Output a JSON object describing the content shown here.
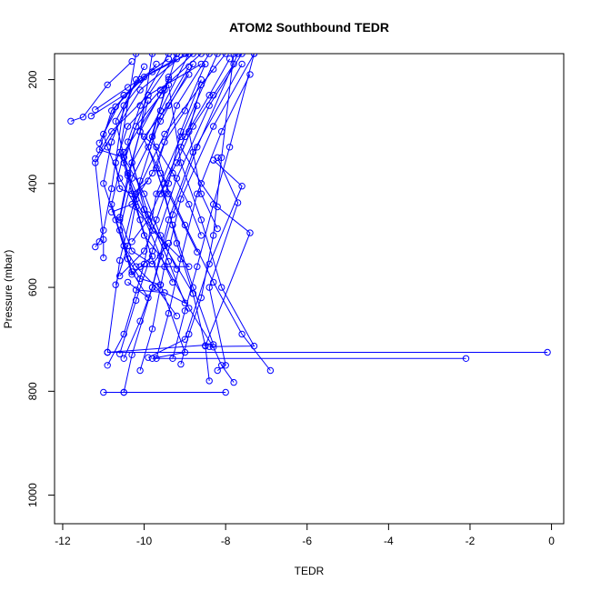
{
  "chart_data": {
    "type": "line",
    "title": "ATOM2 Southbound TEDR",
    "xlabel": "TEDR",
    "ylabel": "Pressure (mbar)",
    "xlim": [
      -12.2,
      0.3
    ],
    "ylim": [
      1055,
      150
    ],
    "y_reversed": true,
    "x_ticks": [
      -12,
      -10,
      -8,
      -6,
      -4,
      -2,
      0
    ],
    "y_ticks": [
      200,
      400,
      600,
      800,
      1000
    ],
    "grid": false,
    "legend": "none",
    "colors": {
      "series": "#0000ff",
      "axis": "#000000",
      "background": "#ffffff"
    },
    "series": [
      {
        "points": [
          [
            -11.8,
            280
          ],
          [
            -11.5,
            272
          ],
          [
            -10.9,
            210
          ],
          [
            -10.3,
            165
          ]
        ]
      },
      {
        "points": [
          [
            -11.3,
            270
          ],
          [
            -10.5,
            230
          ],
          [
            -9.8,
            185
          ],
          [
            -9.2,
            160
          ]
        ]
      },
      {
        "points": [
          [
            -11.2,
            258
          ],
          [
            -10.4,
            215
          ],
          [
            -9.4,
            160
          ]
        ]
      },
      {
        "points": [
          [
            -11.1,
            322
          ],
          [
            -10.7,
            252
          ],
          [
            -10.0,
            195
          ],
          [
            -8.9,
            150
          ]
        ]
      },
      {
        "points": [
          [
            -11.2,
            352
          ],
          [
            -10.8,
            300
          ],
          [
            -9.9,
            230
          ],
          [
            -8.6,
            170
          ]
        ]
      },
      {
        "points": [
          [
            -11.2,
            522
          ],
          [
            -11.1,
            512
          ],
          [
            -11.0,
            490
          ],
          [
            -10.8,
            410
          ],
          [
            -10.5,
            250
          ],
          [
            -9.7,
            170
          ]
        ]
      },
      {
        "points": [
          [
            -11.0,
            543
          ],
          [
            -11.0,
            508
          ],
          [
            -11.2,
            360
          ],
          [
            -10.1,
            220
          ],
          [
            -9.0,
            150
          ]
        ]
      },
      {
        "points": [
          [
            -10.9,
            725
          ],
          [
            -10.9,
            725
          ],
          [
            -10.6,
            548
          ],
          [
            -10.2,
            420
          ],
          [
            -9.5,
            305
          ],
          [
            -8.3,
            180
          ]
        ]
      },
      {
        "points": [
          [
            -10.9,
            750
          ],
          [
            -10.5,
            690
          ],
          [
            -10.0,
            555
          ],
          [
            -9.7,
            420
          ],
          [
            -9.1,
            310
          ],
          [
            -8.2,
            150
          ]
        ]
      },
      {
        "points": [
          [
            -11.0,
            802
          ],
          [
            -10.5,
            802
          ],
          [
            -8.0,
            802
          ]
        ]
      },
      {
        "points": [
          [
            -10.5,
            802
          ],
          [
            -10.3,
            730
          ],
          [
            -9.8,
            600
          ],
          [
            -9.3,
            460
          ],
          [
            -8.7,
            330
          ],
          [
            -7.7,
            150
          ]
        ]
      },
      {
        "points": [
          [
            -10.7,
            595
          ],
          [
            -10.4,
            520
          ],
          [
            -10.1,
            395
          ],
          [
            -9.6,
            270
          ],
          [
            -8.9,
            175
          ]
        ]
      },
      {
        "points": [
          [
            -10.6,
            728
          ],
          [
            -10.2,
            625
          ],
          [
            -9.8,
            530
          ],
          [
            -9.2,
            390
          ],
          [
            -8.4,
            250
          ],
          [
            -7.6,
            150
          ]
        ]
      },
      {
        "points": [
          [
            -10.5,
            737
          ],
          [
            -10.1,
            665
          ],
          [
            -9.8,
            600
          ],
          [
            -9.4,
            470
          ],
          [
            -8.8,
            340
          ],
          [
            -7.6,
            170
          ]
        ]
      },
      {
        "points": [
          [
            -10.1,
            760
          ],
          [
            -9.8,
            680
          ],
          [
            -9.5,
            560
          ],
          [
            -9.1,
            430
          ],
          [
            -8.3,
            290
          ],
          [
            -7.3,
            150
          ]
        ]
      },
      {
        "points": [
          [
            -9.7,
            737
          ],
          [
            -9.4,
            650
          ],
          [
            -9.1,
            545
          ],
          [
            -8.7,
            420
          ],
          [
            -8.1,
            300
          ],
          [
            -7.4,
            190
          ]
        ]
      },
      {
        "points": [
          [
            -9.3,
            737
          ],
          [
            -9.0,
            645
          ],
          [
            -8.7,
            560
          ],
          [
            -8.3,
            440
          ],
          [
            -7.9,
            330
          ],
          [
            -7.3,
            150
          ]
        ]
      },
      {
        "points": [
          [
            -9.1,
            748
          ],
          [
            -8.9,
            690
          ],
          [
            -8.6,
            620
          ],
          [
            -8.3,
            500
          ],
          [
            -8.1,
            350
          ],
          [
            -7.8,
            150
          ]
        ]
      },
      {
        "points": [
          [
            -8.4,
            780
          ],
          [
            -8.5,
            712
          ],
          [
            -8.8,
            612
          ],
          [
            -9.2,
            515
          ],
          [
            -9.5,
            420
          ],
          [
            -9.9,
            330
          ],
          [
            -9.2,
            150
          ]
        ]
      },
      {
        "points": [
          [
            -7.8,
            783
          ],
          [
            -8.1,
            750
          ],
          [
            -8.3,
            715
          ],
          [
            -8.9,
            640
          ],
          [
            -9.6,
            540
          ],
          [
            -10.2,
            430
          ],
          [
            -10.6,
            340
          ],
          [
            -10.2,
            150
          ]
        ]
      },
      {
        "points": [
          [
            -6.9,
            760
          ],
          [
            -7.6,
            690
          ],
          [
            -8.3,
            590
          ],
          [
            -9.0,
            480
          ],
          [
            -9.6,
            380
          ],
          [
            -10.1,
            300
          ],
          [
            -9.8,
            150
          ]
        ]
      },
      {
        "points": [
          [
            -0.1,
            725
          ],
          [
            -10.9,
            725
          ],
          [
            -8.3,
            710
          ],
          [
            -8.8,
            600
          ],
          [
            -9.3,
            480
          ],
          [
            -9.7,
            370
          ],
          [
            -9.2,
            250
          ],
          [
            -8.4,
            150
          ]
        ]
      },
      {
        "points": [
          [
            -2.1,
            737
          ],
          [
            -9.8,
            737
          ],
          [
            -9.0,
            725
          ],
          [
            -9.6,
            595
          ],
          [
            -10.1,
            470
          ],
          [
            -10.5,
            350
          ],
          [
            -9.9,
            230
          ],
          [
            -9.2,
            150
          ]
        ]
      },
      {
        "points": [
          [
            -8.3,
            355
          ],
          [
            -8.3,
            355
          ],
          [
            -7.6,
            405
          ],
          [
            -8.4,
            555
          ],
          [
            -9.0,
            700
          ],
          [
            -9.9,
            735
          ]
        ]
      },
      {
        "points": [
          [
            -8.2,
            350
          ],
          [
            -7.7,
            437
          ],
          [
            -8.4,
            600
          ],
          [
            -8.0,
            750
          ],
          [
            -8.2,
            760
          ]
        ]
      },
      {
        "points": [
          [
            -8.5,
            713
          ],
          [
            -7.4,
            495
          ],
          [
            -8.2,
            445
          ],
          [
            -8.6,
            400
          ],
          [
            -9.1,
            330
          ],
          [
            -8.7,
            250
          ]
        ]
      },
      {
        "points": [
          [
            -8.4,
            714
          ],
          [
            -7.3,
            713
          ],
          [
            -8.1,
            600
          ],
          [
            -8.6,
            470
          ],
          [
            -9.1,
            360
          ],
          [
            -9.4,
            210
          ]
        ]
      },
      {
        "points": [
          [
            -8.7,
            532
          ],
          [
            -9.4,
            420
          ],
          [
            -9.8,
            310
          ],
          [
            -9.4,
            195
          ],
          [
            -8.8,
            150
          ]
        ]
      },
      {
        "points": [
          [
            -8.8,
            612
          ],
          [
            -9.5,
            520
          ],
          [
            -10.0,
            450
          ],
          [
            -10.4,
            320
          ],
          [
            -10.1,
            250
          ],
          [
            -9.4,
            150
          ]
        ]
      },
      {
        "points": [
          [
            -8.2,
            487
          ],
          [
            -8.6,
            420
          ],
          [
            -8.9,
            300
          ],
          [
            -8.6,
            210
          ],
          [
            -8.0,
            150
          ]
        ]
      },
      {
        "points": [
          [
            -10.1,
            560
          ],
          [
            -8.9,
            560
          ],
          [
            -9.8,
            490
          ],
          [
            -10.4,
            380
          ],
          [
            -10.7,
            280
          ],
          [
            -10.0,
            175
          ]
        ]
      },
      {
        "points": [
          [
            -9.8,
            540
          ],
          [
            -10.3,
            575
          ],
          [
            -10.7,
            470
          ],
          [
            -11.0,
            400
          ],
          [
            -10.8,
            320
          ],
          [
            -10.2,
            200
          ]
        ]
      },
      {
        "points": [
          [
            -10.4,
            590
          ],
          [
            -9.9,
            620
          ],
          [
            -10.3,
            570
          ],
          [
            -10.6,
            490
          ],
          [
            -10.3,
            390
          ],
          [
            -9.6,
            280
          ],
          [
            -8.8,
            170
          ]
        ]
      },
      {
        "points": [
          [
            -9.6,
            595
          ],
          [
            -10.1,
            583
          ],
          [
            -10.4,
            545
          ],
          [
            -10.6,
            470
          ],
          [
            -10.3,
            360
          ],
          [
            -9.6,
            260
          ],
          [
            -8.9,
            150
          ]
        ]
      },
      {
        "points": [
          [
            -9.2,
            655
          ],
          [
            -9.7,
            600
          ],
          [
            -10.2,
            560
          ],
          [
            -10.5,
            520
          ],
          [
            -10.8,
            440
          ],
          [
            -10.5,
            340
          ],
          [
            -9.6,
            230
          ]
        ]
      },
      {
        "points": [
          [
            -10.2,
            605
          ],
          [
            -9.5,
            610
          ],
          [
            -9.0,
            630
          ],
          [
            -9.4,
            550
          ],
          [
            -9.9,
            460
          ],
          [
            -10.3,
            360
          ],
          [
            -9.9,
            240
          ]
        ]
      },
      {
        "points": [
          [
            -10.6,
            578
          ],
          [
            -10.0,
            530
          ],
          [
            -9.7,
            470
          ],
          [
            -9.4,
            400
          ],
          [
            -9.1,
            300
          ],
          [
            -8.6,
            200
          ]
        ]
      },
      {
        "points": [
          [
            -10.3,
            512
          ],
          [
            -9.9,
            470
          ],
          [
            -9.5,
            400
          ],
          [
            -9.0,
            310
          ],
          [
            -8.4,
            230
          ],
          [
            -7.9,
            160
          ]
        ]
      },
      {
        "points": [
          [
            -9.4,
            515
          ],
          [
            -9.8,
            555
          ],
          [
            -10.3,
            530
          ],
          [
            -10.6,
            465
          ],
          [
            -10.4,
            385
          ],
          [
            -10.1,
            300
          ],
          [
            -9.4,
            200
          ]
        ]
      },
      {
        "points": [
          [
            -9.2,
            565
          ],
          [
            -9.6,
            500
          ],
          [
            -10.0,
            420
          ],
          [
            -10.5,
            350
          ],
          [
            -11.1,
            335
          ],
          [
            -10.8,
            260
          ],
          [
            -10.1,
            200
          ]
        ]
      },
      {
        "points": [
          [
            -9.8,
            490
          ],
          [
            -10.2,
            445
          ],
          [
            -10.6,
            390
          ],
          [
            -10.9,
            330
          ],
          [
            -11.0,
            305
          ],
          [
            -10.5,
            230
          ]
        ]
      },
      {
        "points": [
          [
            -10.8,
            455
          ],
          [
            -10.3,
            440
          ],
          [
            -9.8,
            380
          ],
          [
            -9.5,
            320
          ],
          [
            -9.0,
            260
          ],
          [
            -8.5,
            170
          ]
        ]
      },
      {
        "points": [
          [
            -9.9,
            395
          ],
          [
            -10.3,
            420
          ],
          [
            -10.6,
            410
          ],
          [
            -10.7,
            360
          ],
          [
            -10.4,
            290
          ],
          [
            -9.6,
            220
          ],
          [
            -8.6,
            150
          ]
        ]
      },
      {
        "points": [
          [
            -9.6,
            420
          ],
          [
            -9.2,
            360
          ],
          [
            -8.8,
            290
          ],
          [
            -8.3,
            230
          ],
          [
            -7.8,
            170
          ]
        ]
      },
      {
        "points": [
          [
            -8.6,
            500
          ],
          [
            -8.9,
            440
          ],
          [
            -9.3,
            380
          ],
          [
            -9.7,
            330
          ],
          [
            -10.0,
            310
          ],
          [
            -9.4,
            250
          ],
          [
            -8.9,
            190
          ]
        ]
      },
      {
        "points": [
          [
            -9.3,
            590
          ],
          [
            -9.6,
            540
          ],
          [
            -10.0,
            500
          ],
          [
            -10.3,
            420
          ],
          [
            -10.5,
            360
          ],
          [
            -10.2,
            290
          ],
          [
            -9.5,
            220
          ]
        ]
      }
    ]
  }
}
